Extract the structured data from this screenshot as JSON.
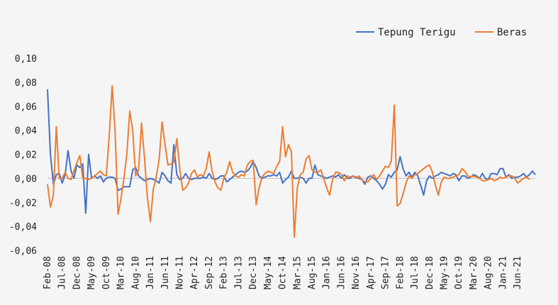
{
  "chart_data": {
    "type": "line",
    "y_ticks": [
      "0,10",
      "0,08",
      "0,06",
      "0,04",
      "0,02",
      "0,00",
      "-0,02",
      "-0,04",
      "-0,06"
    ],
    "ylim": [
      -0.06,
      0.1
    ],
    "x_tick_labels": [
      "Feb-08",
      "Jul-08",
      "Dec-08",
      "May-09",
      "Oct-09",
      "Mar-10",
      "Aug-10",
      "Jan-11",
      "Jun-11",
      "Nov-11",
      "Apr-12",
      "Sep-12",
      "Feb-13",
      "Jul-13",
      "Dec-13",
      "May-14",
      "Oct-14",
      "Mar-15",
      "Aug-15",
      "Jan-16",
      "Jun-16",
      "Nov-16",
      "Apr-17",
      "Sep-17",
      "Feb-18",
      "Jul-18",
      "Dec-18",
      "May-19",
      "Oct-19",
      "Mar-20",
      "Aug-20",
      "Jan-21",
      "Jun-21"
    ],
    "x_start": "Feb-08",
    "x_end": "Jun-21",
    "legend_position": "top-right",
    "grid": false,
    "series": [
      {
        "name": "Tepung Terigu",
        "color": "#4472C4",
        "values": [
          0.074,
          0.02,
          -0.005,
          0.003,
          0.004,
          -0.004,
          0.003,
          0.023,
          0.006,
          0.0,
          0.011,
          0.009,
          0.012,
          -0.029,
          0.02,
          0.0,
          0.002,
          0.0,
          0.002,
          -0.003,
          0.0,
          0.001,
          0.001,
          0.0,
          -0.01,
          -0.009,
          -0.007,
          -0.007,
          -0.007,
          0.007,
          0.009,
          0.002,
          0.0,
          -0.002,
          -0.001,
          0.0,
          -0.001,
          -0.002,
          -0.004,
          0.005,
          0.002,
          -0.002,
          -0.004,
          0.028,
          0.003,
          -0.001,
          0.0,
          0.004,
          0.0,
          -0.001,
          0.0,
          0.0,
          0.0,
          0.001,
          0.0,
          0.004,
          0.0,
          -0.001,
          0.0,
          0.002,
          0.002,
          -0.003,
          -0.001,
          0.001,
          0.003,
          0.005,
          0.006,
          0.005,
          0.006,
          0.009,
          0.014,
          0.009,
          0.002,
          0.0,
          0.001,
          0.002,
          0.002,
          0.003,
          0.002,
          0.005,
          -0.004,
          -0.001,
          0.001,
          0.006,
          0.0,
          0.0,
          0.001,
          0.0,
          -0.004,
          0.0,
          0.0,
          0.011,
          0.003,
          0.002,
          0.001,
          0.0,
          0.001,
          0.002,
          0.001,
          0.003,
          0.0,
          0.003,
          0.0,
          0.0,
          0.002,
          0.001,
          0.0,
          -0.001,
          -0.005,
          0.001,
          0.002,
          0.0,
          -0.002,
          -0.005,
          -0.009,
          -0.005,
          0.003,
          0.001,
          0.005,
          0.007,
          0.018,
          0.008,
          0.002,
          0.005,
          0.001,
          0.005,
          0.002,
          -0.006,
          -0.014,
          -0.002,
          0.002,
          0.0,
          0.002,
          0.003,
          0.005,
          0.004,
          0.003,
          0.002,
          0.004,
          0.003,
          -0.002,
          0.002,
          0.002,
          0.0,
          0.001,
          0.003,
          0.002,
          0.0,
          0.004,
          0.0,
          -0.001,
          0.004,
          0.004,
          0.003,
          0.008,
          0.008,
          0.001,
          0.003,
          0.0,
          0.001,
          0.001,
          0.002,
          0.004,
          0.001,
          0.003,
          0.006,
          0.003
        ]
      },
      {
        "name": "Beras",
        "color": "#ED7D31",
        "values": [
          -0.005,
          -0.024,
          -0.014,
          0.043,
          0.0,
          0.0,
          0.005,
          0.0,
          -0.001,
          0.006,
          0.013,
          0.019,
          0.0,
          0.0,
          -0.001,
          0.0,
          0.002,
          0.004,
          0.006,
          0.003,
          0.002,
          0.035,
          0.077,
          0.04,
          -0.03,
          -0.017,
          0.0,
          0.02,
          0.056,
          0.04,
          0.002,
          0.007,
          0.046,
          0.017,
          -0.016,
          -0.036,
          -0.009,
          0.001,
          0.016,
          0.047,
          0.028,
          0.011,
          0.012,
          0.013,
          0.033,
          0.008,
          -0.01,
          -0.008,
          -0.004,
          0.004,
          0.007,
          0.001,
          0.003,
          0.002,
          0.008,
          0.022,
          0.006,
          -0.003,
          -0.008,
          -0.01,
          0.0,
          0.005,
          0.014,
          0.005,
          0.002,
          0.001,
          0.003,
          0.002,
          0.011,
          0.014,
          0.015,
          -0.022,
          -0.008,
          0.001,
          0.004,
          0.006,
          0.005,
          0.004,
          0.01,
          0.014,
          0.043,
          0.018,
          0.028,
          0.022,
          -0.049,
          -0.008,
          0.003,
          0.005,
          0.016,
          0.019,
          0.007,
          0.005,
          0.005,
          0.007,
          0.0,
          -0.008,
          -0.014,
          -0.001,
          0.005,
          0.005,
          0.003,
          -0.002,
          0.002,
          0.001,
          0.002,
          0.0,
          0.002,
          -0.001,
          -0.003,
          -0.003,
          0.0,
          0.003,
          -0.001,
          0.002,
          0.006,
          0.01,
          0.009,
          0.014,
          0.061,
          -0.023,
          -0.021,
          -0.013,
          -0.004,
          0.002,
          0.0,
          0.003,
          0.004,
          0.006,
          0.008,
          0.01,
          0.011,
          0.005,
          -0.006,
          -0.014,
          -0.003,
          0.001,
          0.0,
          0.0,
          0.001,
          0.002,
          0.003,
          0.008,
          0.006,
          0.002,
          0.001,
          0.002,
          0.001,
          0.0,
          -0.002,
          -0.002,
          -0.001,
          0.0,
          -0.002,
          -0.001,
          0.001,
          0.0,
          0.001,
          0.002,
          0.002,
          0.0,
          -0.004,
          -0.002,
          0.0,
          0.001,
          -0.001
        ]
      }
    ]
  }
}
